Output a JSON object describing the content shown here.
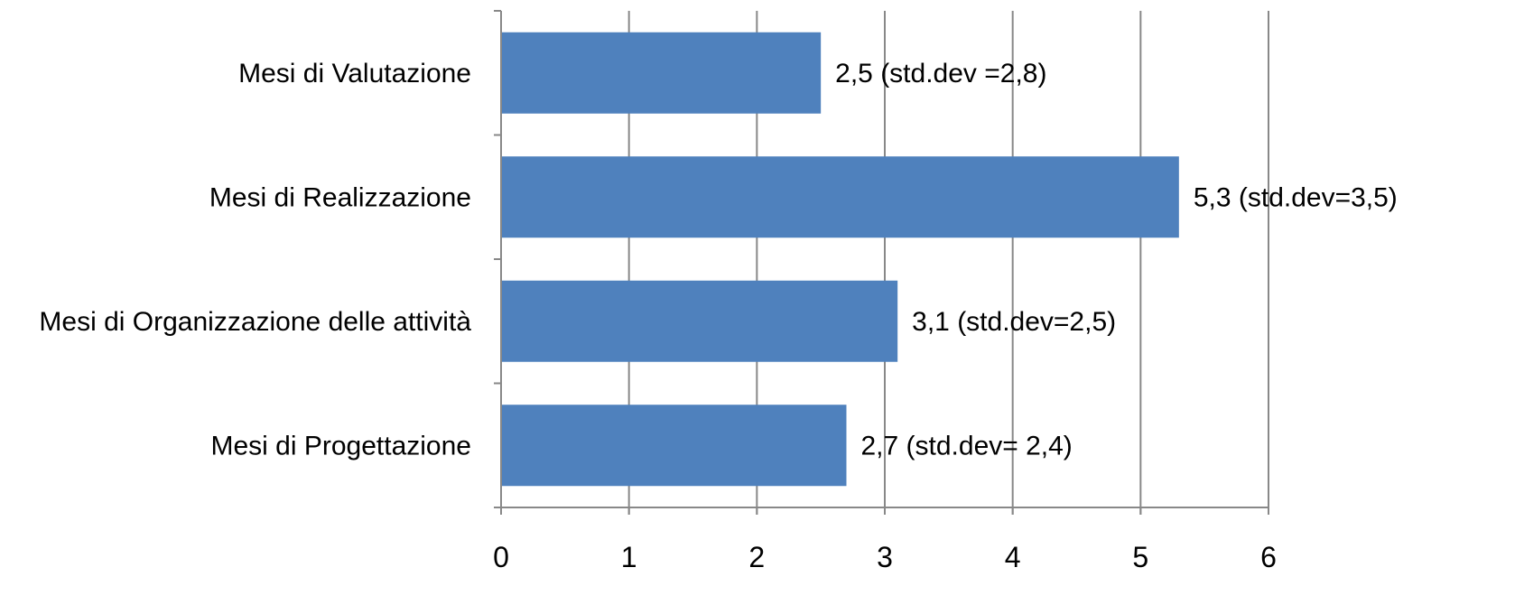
{
  "chart_data": {
    "type": "bar",
    "orientation": "horizontal",
    "categories": [
      "Mesi di Valutazione",
      "Mesi di Realizzazione",
      "Mesi di Organizzazione delle attività",
      "Mesi di Progettazione"
    ],
    "values": [
      2.5,
      5.3,
      3.1,
      2.7
    ],
    "data_labels": [
      "2,5 (std.dev =2,8)",
      "5,3  (std.dev=3,5)",
      "3,1 (std.dev=2,5)",
      "2,7 (std.dev= 2,4)"
    ],
    "xlim": [
      0,
      6
    ],
    "x_ticks": [
      0,
      1,
      2,
      3,
      4,
      5,
      6
    ],
    "x_tick_labels": [
      "0",
      "1",
      "2",
      "3",
      "4",
      "5",
      "6"
    ],
    "title": "",
    "xlabel": "",
    "ylabel": "",
    "grid": "vertical",
    "legend": "none",
    "colors": {
      "bar": "#4f81bd",
      "grid": "#888888",
      "text": "#000000"
    }
  }
}
